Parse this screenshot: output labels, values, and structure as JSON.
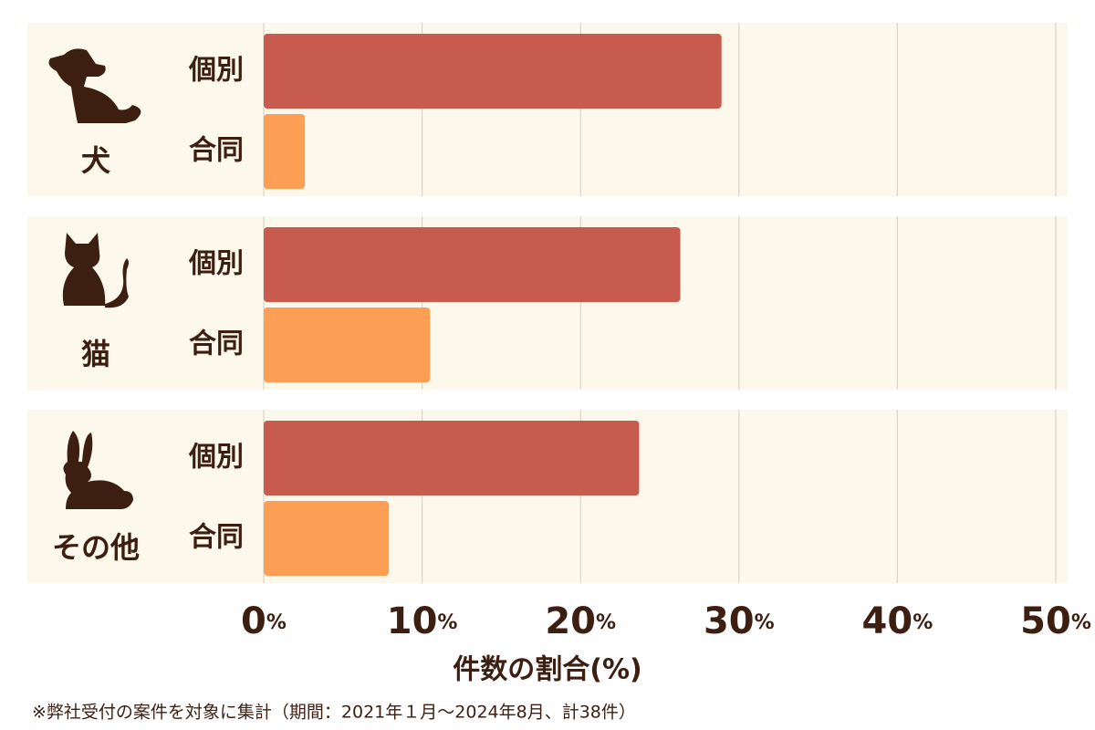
{
  "chart_data": {
    "type": "bar",
    "orientation": "horizontal",
    "categories": [
      "犬",
      "猫",
      "その他"
    ],
    "series": [
      {
        "name": "個別",
        "color": "#c75c4e",
        "values": [
          28.9,
          26.3,
          23.7
        ]
      },
      {
        "name": "合同",
        "color": "#fd9e55",
        "values": [
          2.6,
          10.5,
          7.9
        ]
      }
    ],
    "xlim": [
      0,
      50
    ],
    "xticks": [
      {
        "value": 0,
        "label": "0%"
      },
      {
        "value": 10,
        "label": "10%"
      },
      {
        "value": 20,
        "label": "20%"
      },
      {
        "value": 30,
        "label": "30%"
      },
      {
        "value": 40,
        "label": "40%"
      },
      {
        "value": 50,
        "label": "50%"
      }
    ],
    "xlabel": "件数の割合(%)",
    "grid": true,
    "footnote": "※弊社受付の案件を対象に集計（期間：2021年１月～2024年8月、計38件）"
  }
}
